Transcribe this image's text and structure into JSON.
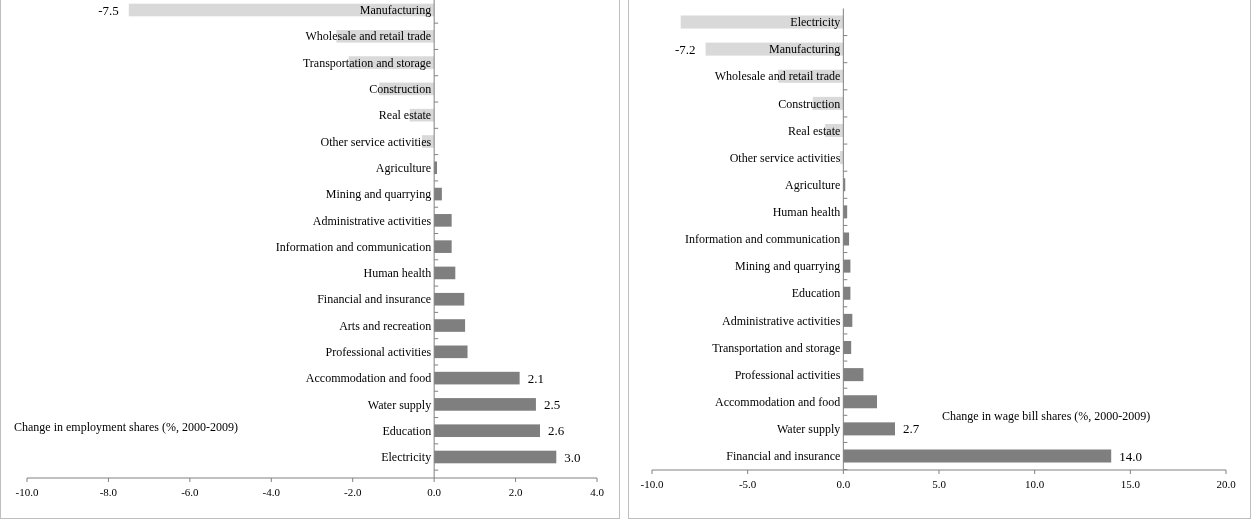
{
  "chart_data": [
    {
      "type": "bar",
      "orientation": "horizontal",
      "title": "Change in employment shares (%, 2000-2009)",
      "categories": [
        "Manufacturing",
        "Wholesale and retail trade",
        "Transportation and storage",
        "Construction",
        "Real estate",
        "Other service activities",
        "Agriculture",
        "Mining and quarrying",
        "Administrative activities",
        "Information and communication",
        "Human health",
        "Financial and insurance",
        "Arts and recreation",
        "Professional activities",
        "Accommodation and food",
        "Water supply",
        "Education",
        "Electricity"
      ],
      "values": [
        -7.5,
        -2.4,
        -2.1,
        -1.35,
        -0.6,
        -0.3,
        0.07,
        0.19,
        0.43,
        0.43,
        0.52,
        0.74,
        0.76,
        0.82,
        2.1,
        2.5,
        2.6,
        3.0
      ],
      "colors": [
        "#d9d9d9",
        "#d9d9d9",
        "#d9d9d9",
        "#d9d9d9",
        "#d9d9d9",
        "#d9d9d9",
        "#7f7f7f",
        "#7f7f7f",
        "#7f7f7f",
        "#7f7f7f",
        "#7f7f7f",
        "#7f7f7f",
        "#7f7f7f",
        "#7f7f7f",
        "#7f7f7f",
        "#7f7f7f",
        "#7f7f7f",
        "#7f7f7f"
      ],
      "value_labels": [
        "-7.5",
        null,
        null,
        null,
        null,
        null,
        null,
        null,
        null,
        null,
        null,
        null,
        null,
        null,
        "2.1",
        "2.5",
        "2.6",
        "3.0"
      ],
      "xlim": [
        -10,
        4
      ],
      "xticks": [
        {
          "value": -10,
          "label": "-10.0"
        },
        {
          "value": -8,
          "label": "-8.0"
        },
        {
          "value": -6,
          "label": "-6.0"
        },
        {
          "value": -4,
          "label": "-4.0"
        },
        {
          "value": -2,
          "label": "-2.0"
        },
        {
          "value": 0,
          "label": "0.0"
        },
        {
          "value": 2,
          "label": "2.0"
        },
        {
          "value": 4,
          "label": "4.0"
        }
      ]
    },
    {
      "type": "bar",
      "orientation": "horizontal",
      "title": "Change in wage bill shares (%, 2000-2009)",
      "categories": [
        "Electricity",
        "Manufacturing",
        "Wholesale and retail trade",
        "Construction",
        "Real estate",
        "Other service activities",
        "Agriculture",
        "Human health",
        "Information and communication",
        "Mining and quarrying",
        "Education",
        "Administrative activities",
        "Transportation and storage",
        "Professional activities",
        "Accommodation and food",
        "Water supply",
        "Financial and insurance"
      ],
      "values": [
        -8.5,
        -7.2,
        -3.4,
        -1.6,
        -0.95,
        -0.18,
        0.1,
        0.2,
        0.3,
        0.37,
        0.37,
        0.47,
        0.41,
        1.05,
        1.76,
        2.7,
        14.0
      ],
      "colors": [
        "#d9d9d9",
        "#d9d9d9",
        "#d9d9d9",
        "#d9d9d9",
        "#d9d9d9",
        "#d9d9d9",
        "#7f7f7f",
        "#7f7f7f",
        "#7f7f7f",
        "#7f7f7f",
        "#7f7f7f",
        "#7f7f7f",
        "#7f7f7f",
        "#7f7f7f",
        "#7f7f7f",
        "#7f7f7f",
        "#7f7f7f"
      ],
      "value_labels": [
        null,
        "-7.2",
        null,
        null,
        null,
        null,
        null,
        null,
        null,
        null,
        null,
        null,
        null,
        null,
        null,
        "2.7",
        "14.0"
      ],
      "xlim": [
        -10,
        20
      ],
      "xticks": [
        {
          "value": -10,
          "label": "-10.0"
        },
        {
          "value": -5,
          "label": "-5.0"
        },
        {
          "value": 0,
          "label": "0.0"
        },
        {
          "value": 5,
          "label": "5.0"
        },
        {
          "value": 10,
          "label": "10.0"
        },
        {
          "value": 15,
          "label": "15.0"
        },
        {
          "value": 20,
          "label": "20.0"
        }
      ]
    }
  ]
}
